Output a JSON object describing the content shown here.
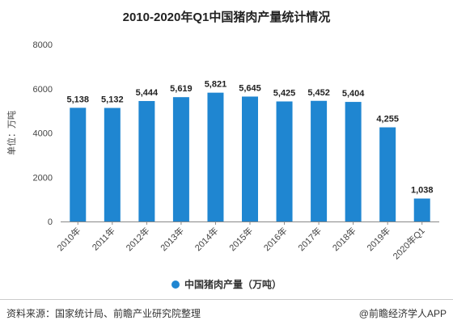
{
  "colors": {
    "bar": "#1f86d1",
    "axis": "#888888",
    "grid": "#dddddd"
  },
  "footer": {
    "source": "资料来源：国家统计局、前瞻产业研究院整理",
    "credit": "@前瞻经济学人APP"
  },
  "chart_data": {
    "type": "bar",
    "title": "2010-2020年Q1中国猪肉产量统计情况",
    "ylabel": "单位：万吨",
    "ylim": [
      0,
      8000
    ],
    "yticks": [
      "0",
      "2000",
      "4000",
      "6000",
      "8000"
    ],
    "categories": [
      "2010年",
      "2011年",
      "2012年",
      "2013年",
      "2014年",
      "2015年",
      "2016年",
      "2017年",
      "2018年",
      "2019年",
      "2020年Q1"
    ],
    "series": [
      {
        "name": "中国猪肉产量（万吨）",
        "values": [
          5138,
          5132,
          5444,
          5619,
          5821,
          5645,
          5425,
          5452,
          5404,
          4255,
          1038
        ],
        "labels": [
          "5,138",
          "5,132",
          "5,444",
          "5,619",
          "5,821",
          "5,645",
          "5,425",
          "5,452",
          "5,404",
          "4,255",
          "1,038"
        ]
      }
    ],
    "legend": "bottom",
    "grid": false
  }
}
